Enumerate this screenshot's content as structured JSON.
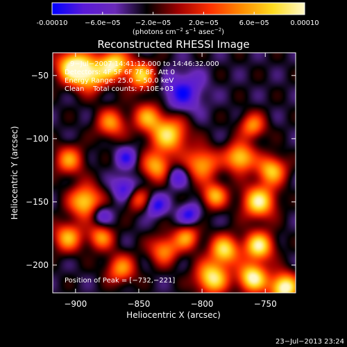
{
  "colorbar": {
    "ticks": [
      "-0.00010",
      "−6.0e−05",
      "−2.0e−05",
      "2.0e−05",
      "6.0e−05",
      "0.00010"
    ],
    "tick_values": [
      -0.0001,
      -6e-05,
      -2e-05,
      2e-05,
      6e-05,
      0.0001
    ],
    "range": [
      -0.0001,
      0.0001
    ],
    "label_a": "(photons cm",
    "label_a_sup": "−2",
    "label_b": " s",
    "label_b_sup": "−1",
    "label_c": " asec",
    "label_c_sup": "−2",
    "label_d": ")",
    "colors": [
      "#0000ff",
      "#5a1ad8",
      "#6a2ab8",
      "#000000",
      "#a00000",
      "#ff3000",
      "#ff8c00",
      "#ffdc20",
      "#fff8c8"
    ]
  },
  "annotations": {
    "time_range": "9−Jul−2007 14:41:12.000 to 14:46:32.000",
    "detectors": "Detectors: 4F 5F 6F 7F 8F, Att 0",
    "energy": "Energy Range: 25.0 − 50.0 keV",
    "clean_total": "Clean    Total counts: 7.10E+03",
    "peak": "Position of Peak = [−732,−221]"
  },
  "footer": {
    "timestamp": "23−Jul−2013 23:24"
  },
  "chart_data": {
    "type": "heatmap",
    "title": "Reconstructed RHESSI Image",
    "xlabel": "Heliocentric X (arcsec)",
    "ylabel": "Heliocentric Y (arcsec)",
    "xlim": [
      -918,
      -726
    ],
    "ylim": [
      -222,
      -32
    ],
    "xticks": [
      -900,
      -850,
      -800,
      -750
    ],
    "xtick_labels": [
      "−900",
      "−850",
      "−800",
      "−750"
    ],
    "yticks": [
      -50,
      -100,
      -150,
      -200
    ],
    "ytick_labels": [
      "−50",
      "−100",
      "−150",
      "−200"
    ],
    "peak_position": [
      -732,
      -221
    ],
    "background_level": -3e-05,
    "blobs": [
      {
        "x": -902,
        "y": -43,
        "amp": 0.00013,
        "r": 9
      },
      {
        "x": -888,
        "y": -50,
        "amp": 0.0001,
        "r": 9
      },
      {
        "x": -870,
        "y": -41,
        "amp": 0.00012,
        "r": 8
      },
      {
        "x": -848,
        "y": -50,
        "amp": 0.0001,
        "r": 8
      },
      {
        "x": -843,
        "y": -83,
        "amp": 8e-05,
        "r": 8
      },
      {
        "x": -872,
        "y": -88,
        "amp": 8e-05,
        "r": 8
      },
      {
        "x": -826,
        "y": -97,
        "amp": 0.00011,
        "r": 10
      },
      {
        "x": -836,
        "y": -122,
        "amp": 9e-05,
        "r": 8
      },
      {
        "x": -852,
        "y": -147,
        "amp": 7e-05,
        "r": 7
      },
      {
        "x": -905,
        "y": -117,
        "amp": 8e-05,
        "r": 8
      },
      {
        "x": -892,
        "y": -150,
        "amp": 0.00011,
        "r": 9
      },
      {
        "x": -906,
        "y": -178,
        "amp": 9e-05,
        "r": 8
      },
      {
        "x": -880,
        "y": -178,
        "amp": 8e-05,
        "r": 7
      },
      {
        "x": -864,
        "y": -203,
        "amp": 8e-05,
        "r": 8
      },
      {
        "x": -830,
        "y": -188,
        "amp": 8e-05,
        "r": 8
      },
      {
        "x": -812,
        "y": -178,
        "amp": 8e-05,
        "r": 7
      },
      {
        "x": -782,
        "y": -188,
        "amp": 0.00011,
        "r": 8
      },
      {
        "x": -755,
        "y": -185,
        "amp": 0.00012,
        "r": 8
      },
      {
        "x": -792,
        "y": -210,
        "amp": 0.00012,
        "r": 9
      },
      {
        "x": -760,
        "y": -210,
        "amp": 0.00013,
        "r": 8
      },
      {
        "x": -735,
        "y": -218,
        "amp": 0.00014,
        "r": 8
      },
      {
        "x": -800,
        "y": -120,
        "amp": 9e-05,
        "r": 9
      },
      {
        "x": -770,
        "y": -115,
        "amp": 0.00011,
        "r": 8
      },
      {
        "x": -755,
        "y": -150,
        "amp": 0.00012,
        "r": 9
      },
      {
        "x": -745,
        "y": -125,
        "amp": 0.0001,
        "r": 8
      },
      {
        "x": -790,
        "y": -145,
        "amp": 9e-05,
        "r": 7
      },
      {
        "x": -760,
        "y": -90,
        "amp": 8e-05,
        "r": 7
      },
      {
        "x": -815,
        "y": -63,
        "amp": -6e-05,
        "r": 11
      },
      {
        "x": -860,
        "y": -140,
        "amp": -7e-05,
        "r": 7
      },
      {
        "x": -836,
        "y": -153,
        "amp": -6e-05,
        "r": 6
      },
      {
        "x": -810,
        "y": -160,
        "amp": -6e-05,
        "r": 6
      },
      {
        "x": -820,
        "y": -130,
        "amp": -5e-05,
        "r": 6
      },
      {
        "x": -860,
        "y": -115,
        "amp": -5e-05,
        "r": 6
      },
      {
        "x": -880,
        "y": -160,
        "amp": -5e-05,
        "r": 6
      }
    ]
  }
}
